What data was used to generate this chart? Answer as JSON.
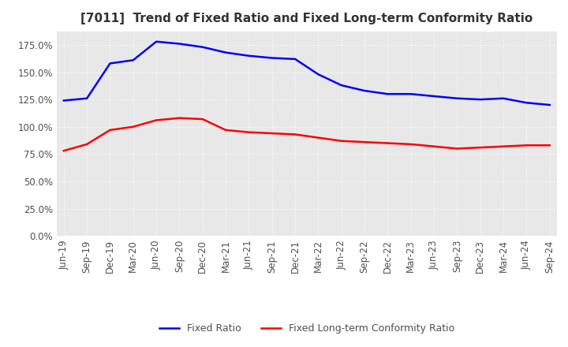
{
  "title": "[7011]  Trend of Fixed Ratio and Fixed Long-term Conformity Ratio",
  "x_labels": [
    "Jun-19",
    "Sep-19",
    "Dec-19",
    "Mar-20",
    "Jun-20",
    "Sep-20",
    "Dec-20",
    "Mar-21",
    "Jun-21",
    "Sep-21",
    "Dec-21",
    "Mar-22",
    "Jun-22",
    "Sep-22",
    "Dec-22",
    "Mar-23",
    "Jun-23",
    "Sep-23",
    "Dec-23",
    "Mar-24",
    "Jun-24",
    "Sep-24"
  ],
  "fixed_ratio": [
    124.0,
    126.0,
    158.0,
    161.0,
    178.0,
    176.0,
    173.0,
    168.0,
    165.0,
    163.0,
    162.0,
    148.0,
    138.0,
    133.0,
    130.0,
    130.0,
    128.0,
    126.0,
    125.0,
    126.0,
    122.0,
    120.0
  ],
  "fixed_lt_ratio": [
    78.0,
    84.0,
    97.0,
    100.0,
    106.0,
    108.0,
    107.0,
    97.0,
    95.0,
    94.0,
    93.0,
    90.0,
    87.0,
    86.0,
    85.0,
    84.0,
    82.0,
    80.0,
    81.0,
    82.0,
    83.0,
    83.0
  ],
  "fixed_ratio_color": "#0000ff",
  "fixed_lt_ratio_color": "#ff0000",
  "background_color": "#ffffff",
  "plot_bg_color": "#e8e8e8",
  "grid_color": "#ffffff",
  "ylim": [
    0,
    187.5
  ],
  "yticks": [
    0.0,
    25.0,
    50.0,
    75.0,
    100.0,
    125.0,
    150.0,
    175.0
  ],
  "legend_fixed_ratio": "Fixed Ratio",
  "legend_fixed_lt_ratio": "Fixed Long-term Conformity Ratio",
  "title_fontsize": 11,
  "tick_fontsize": 8.5,
  "legend_fontsize": 9
}
